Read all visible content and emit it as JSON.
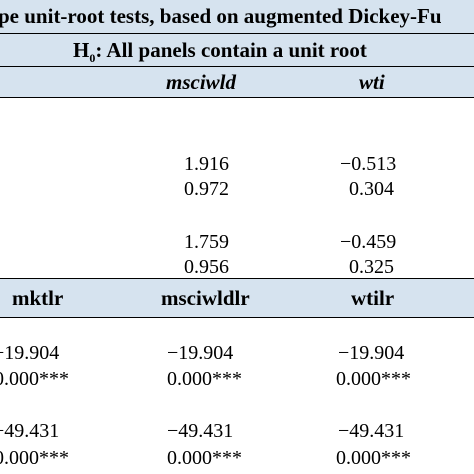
{
  "title": "pe unit-root tests, based on augmented Dickey-Fu",
  "hypothesis": {
    "prefix": "H",
    "subscript": "0",
    "text": ": All panels contain a unit root"
  },
  "upper_columns": [
    "msciwld",
    "wti"
  ],
  "upper_rows": [
    [
      "1.916",
      "−0.513"
    ],
    [
      "0.972",
      "0.304"
    ],
    [
      "1.759",
      "−0.459"
    ],
    [
      "0.956",
      "0.325"
    ]
  ],
  "lower_columns": [
    "mktlr",
    "msciwldlr",
    "wtilr"
  ],
  "lower_rows": [
    [
      "−19.904",
      "−19.904",
      "−19.904"
    ],
    [
      "0.000***",
      "0.000***",
      "0.000***"
    ],
    [
      "−49.431",
      "−49.431",
      "−49.431"
    ],
    [
      "0.000***",
      "0.000***",
      "0.000***"
    ]
  ],
  "colors": {
    "header_band": "#d6e3ef",
    "text": "#000000",
    "rule": "#000000"
  }
}
